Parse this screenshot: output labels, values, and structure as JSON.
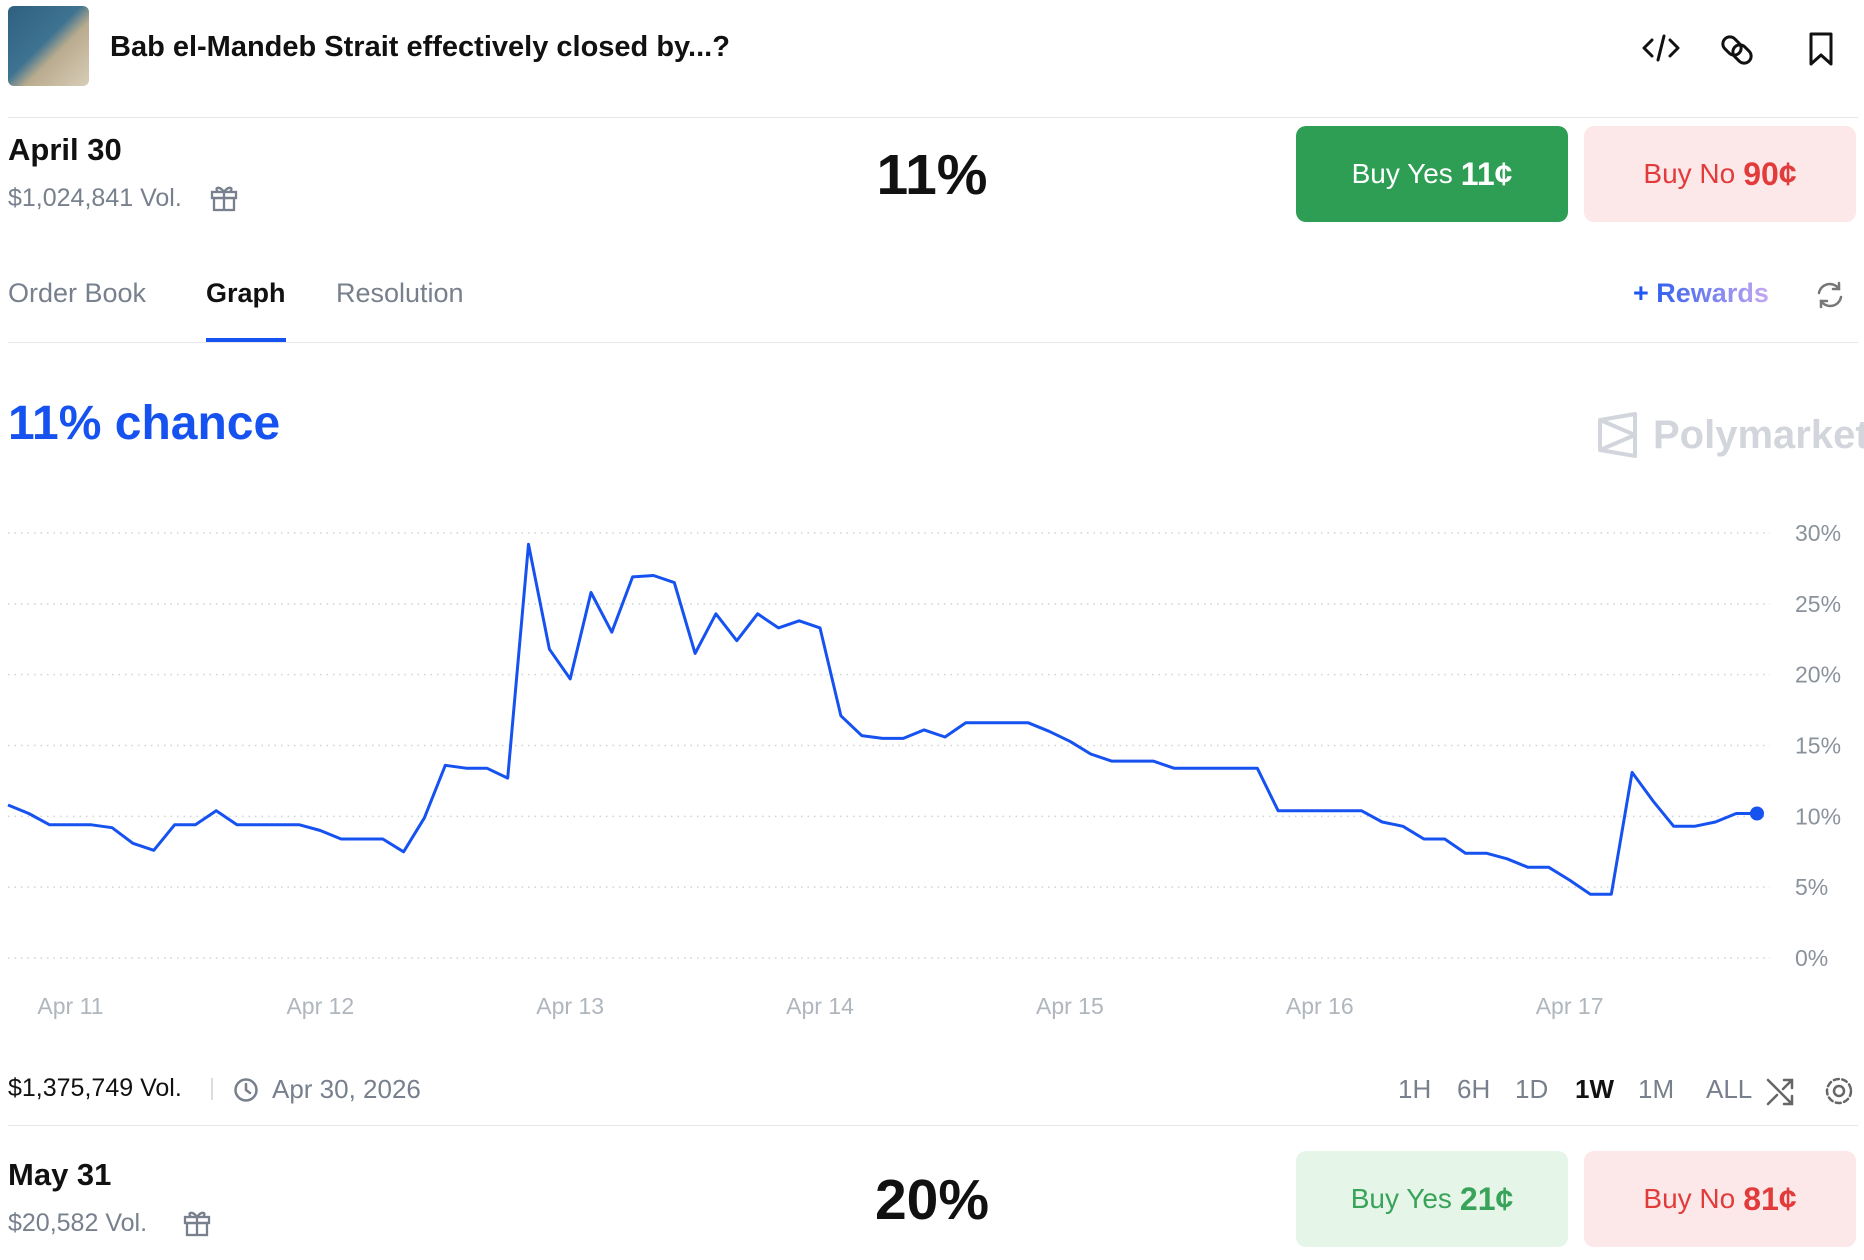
{
  "header": {
    "title": "Bab el-Mandeb Strait effectively closed by...?"
  },
  "markets": [
    {
      "date": "April 30",
      "volume": "$1,024,841 Vol.",
      "chance": "11%",
      "buy_yes": "Buy Yes",
      "yes_price": "11¢",
      "buy_no": "Buy No",
      "no_price": "90¢"
    },
    {
      "date": "May 31",
      "volume": "$20,582 Vol.",
      "chance": "20%",
      "buy_yes": "Buy Yes",
      "yes_price": "21¢",
      "buy_no": "Buy No",
      "no_price": "81¢"
    }
  ],
  "tabs": {
    "items": [
      "Order Book",
      "Graph",
      "Resolution"
    ],
    "selected": "Graph",
    "rewards": "Rewards"
  },
  "chart_data": {
    "type": "line",
    "title": "11% chance",
    "watermark": "Polymarket",
    "color": "#1652f0",
    "grid": true,
    "categories": [
      null,
      null,
      null,
      "Apr 11",
      null,
      null,
      null,
      null,
      null,
      null,
      null,
      null,
      null,
      null,
      null,
      "Apr 12",
      null,
      null,
      null,
      null,
      null,
      null,
      null,
      null,
      null,
      null,
      null,
      "Apr 13",
      null,
      null,
      null,
      null,
      null,
      null,
      null,
      null,
      null,
      null,
      null,
      "Apr 14",
      null,
      null,
      null,
      null,
      null,
      null,
      null,
      null,
      null,
      null,
      null,
      "Apr 15",
      null,
      null,
      null,
      null,
      null,
      null,
      null,
      null,
      null,
      null,
      null,
      "Apr 16",
      null,
      null,
      null,
      null,
      null,
      null,
      null,
      null,
      null,
      null,
      null,
      "Apr 17",
      null,
      null,
      null,
      null,
      null,
      null,
      null,
      null,
      null
    ],
    "series": [
      {
        "name": "April 30",
        "color": "#1652f0",
        "values": [
          10.8,
          10.2,
          9.4,
          9.4,
          9.4,
          9.2,
          8.1,
          7.6,
          9.4,
          9.4,
          10.4,
          9.4,
          9.4,
          9.4,
          9.4,
          9.0,
          8.4,
          8.4,
          8.4,
          7.5,
          9.9,
          13.6,
          13.4,
          13.4,
          12.7,
          29.2,
          21.8,
          19.7,
          25.8,
          23.0,
          26.9,
          27.0,
          26.5,
          21.5,
          24.3,
          22.4,
          24.3,
          23.3,
          23.8,
          23.3,
          17.1,
          15.7,
          15.5,
          15.5,
          16.1,
          15.6,
          16.6,
          16.6,
          16.6,
          16.6,
          16.0,
          15.3,
          14.4,
          13.9,
          13.9,
          13.9,
          13.4,
          13.4,
          13.4,
          13.4,
          13.4,
          10.4,
          10.4,
          10.4,
          10.4,
          10.4,
          9.6,
          9.3,
          8.4,
          8.4,
          7.4,
          7.4,
          7.0,
          6.4,
          6.4,
          5.5,
          4.5,
          4.5,
          13.1,
          11.1,
          9.3,
          9.3,
          9.6,
          10.2,
          10.2
        ]
      }
    ],
    "ylim": [
      0,
      30
    ],
    "yticks": [
      {
        "value": 0,
        "label": "0%"
      },
      {
        "value": 5,
        "label": "5%"
      },
      {
        "value": 10,
        "label": "10%"
      },
      {
        "value": 15,
        "label": "15%"
      },
      {
        "value": 20,
        "label": "20%"
      },
      {
        "value": 25,
        "label": "25%"
      },
      {
        "value": 30,
        "label": "30%"
      }
    ]
  },
  "footer": {
    "volume": "$1,375,749 Vol.",
    "end_date": "Apr 30, 2026",
    "timeframes": [
      "1H",
      "6H",
      "1D",
      "1W",
      "1M",
      "ALL"
    ],
    "selected_timeframe": "1W"
  }
}
